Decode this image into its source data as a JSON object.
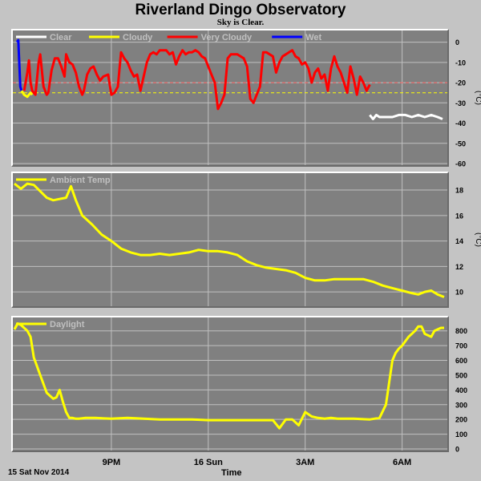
{
  "title": "Riverland Dingo Observatory",
  "subtitle": "Sky is Clear.",
  "footer": {
    "date": "15 Sat Nov 2014",
    "x_label": "Time"
  },
  "x_axis": {
    "tick_labels": [
      {
        "label": "9PM",
        "hour": 3
      },
      {
        "label": "16 Sun",
        "hour": 6
      },
      {
        "label": "3AM",
        "hour": 9
      },
      {
        "label": "6AM",
        "hour": 12
      }
    ],
    "range": [
      0,
      13.35
    ]
  },
  "colors": {
    "panel_bg": "#808080",
    "grid": "#c0c0c0",
    "yellow": "#ffff00",
    "white": "#ffffff",
    "red": "#ff0000",
    "blue": "#0000ff",
    "dash_red": "#ff6060",
    "dash_yellow": "#ffff00"
  },
  "chart_data": [
    {
      "type": "line",
      "id": "sky",
      "ylabel": "(°C)",
      "ylim": [
        -60,
        5
      ],
      "yticks": [
        0,
        -10,
        -20,
        -30,
        -40,
        -50,
        -60
      ],
      "legend": [
        {
          "name": "Clear",
          "color": "#ffffff"
        },
        {
          "name": "Cloudy",
          "color": "#ffff00"
        },
        {
          "name": "Very Cloudy",
          "color": "#ff0000"
        },
        {
          "name": "Wet",
          "color": "#0000ff"
        }
      ],
      "thresholds": [
        -20,
        -25
      ],
      "series": [
        {
          "name": "Wet",
          "color": "#0000ff",
          "x": [
            0.08,
            0.12,
            0.15,
            0.18,
            0.22
          ],
          "y": [
            0,
            1,
            -10,
            -22,
            -24
          ]
        },
        {
          "name": "Cloudy",
          "color": "#ffff00",
          "x": [
            0.22,
            0.3,
            0.4,
            0.5,
            0.55
          ],
          "y": [
            -24,
            -26,
            -27,
            -25,
            -26
          ]
        },
        {
          "name": "Very Cloudy",
          "color": "#ff0000",
          "x": [
            0.3,
            0.4,
            0.45,
            0.5,
            0.55,
            0.65,
            0.75,
            0.8,
            0.9,
            1.0,
            1.05,
            1.15,
            1.25,
            1.35,
            1.45,
            1.55,
            1.6,
            1.7,
            1.8,
            1.9,
            2.0,
            2.1,
            2.15,
            2.25,
            2.35,
            2.45,
            2.55,
            2.65,
            2.75,
            2.9,
            3.0,
            3.1,
            3.2,
            3.3,
            3.4,
            3.5,
            3.6,
            3.7,
            3.8,
            3.9,
            4.0,
            4.1,
            4.2,
            4.3,
            4.4,
            4.5,
            4.6,
            4.7,
            4.8,
            4.9,
            5.0,
            5.1,
            5.2,
            5.3,
            5.4,
            5.5,
            5.6,
            5.7,
            5.8,
            5.9,
            6.0,
            6.1,
            6.2,
            6.3,
            6.4,
            6.5,
            6.6,
            6.7,
            6.8,
            6.9,
            7.0,
            7.1,
            7.2,
            7.3,
            7.4,
            7.5,
            7.6,
            7.7,
            7.8,
            7.9,
            8.0,
            8.1,
            8.2,
            8.3,
            8.4,
            8.5,
            8.6,
            8.7,
            8.8,
            8.9,
            9.0,
            9.1,
            9.2,
            9.3,
            9.4,
            9.5,
            9.6,
            9.7,
            9.8,
            9.9,
            10.0,
            10.1,
            10.2,
            10.3,
            10.4,
            10.5,
            10.6,
            10.7,
            10.8,
            10.9,
            11.0
          ],
          "y": [
            -24,
            -15,
            -9,
            -20,
            -24,
            -26,
            -10,
            -6,
            -22,
            -26,
            -25,
            -14,
            -8,
            -8,
            -12,
            -17,
            -6,
            -10,
            -11,
            -15,
            -22,
            -26,
            -24,
            -16,
            -13,
            -12,
            -16,
            -19,
            -17,
            -16,
            -26,
            -25,
            -22,
            -5,
            -8,
            -10,
            -14,
            -17,
            -16,
            -24,
            -17,
            -10,
            -6,
            -5,
            -6,
            -4,
            -4,
            -4,
            -6,
            -5,
            -11,
            -7,
            -4,
            -6,
            -5,
            -5,
            -4,
            -5,
            -7,
            -8,
            -12,
            -16,
            -20,
            -33,
            -30,
            -26,
            -8,
            -6,
            -6,
            -6,
            -7,
            -8,
            -12,
            -28,
            -30,
            -26,
            -22,
            -5,
            -5,
            -6,
            -7,
            -15,
            -10,
            -7,
            -6,
            -5,
            -4,
            -7,
            -8,
            -11,
            -10,
            -13,
            -20,
            -15,
            -13,
            -18,
            -16,
            -24,
            -13,
            -7,
            -12,
            -15,
            -20,
            -25,
            -12,
            -18,
            -26,
            -17,
            -20,
            -24,
            -21
          ]
        },
        {
          "name": "Clear",
          "color": "#ffffff",
          "x": [
            11.0,
            11.1,
            11.2,
            11.3,
            11.5,
            11.7,
            11.9,
            12.1,
            12.3,
            12.5,
            12.7,
            12.9,
            13.1,
            13.25
          ],
          "y": [
            -36,
            -38,
            -36,
            -37,
            -37,
            -37,
            -36,
            -36,
            -37,
            -36,
            -37,
            -36,
            -37,
            -38
          ]
        }
      ]
    },
    {
      "type": "line",
      "id": "temp",
      "ylabel": "(°C)",
      "ylim": [
        9,
        19.2
      ],
      "yticks": [
        18,
        16,
        14,
        12,
        10
      ],
      "legend": [
        {
          "name": "Ambient Temp",
          "color": "#ffff00"
        }
      ],
      "series": [
        {
          "name": "Ambient Temp",
          "color": "#ffff00",
          "x": [
            0,
            0.2,
            0.4,
            0.6,
            0.8,
            1.0,
            1.2,
            1.4,
            1.6,
            1.75,
            1.9,
            2.1,
            2.4,
            2.7,
            3.0,
            3.3,
            3.6,
            3.9,
            4.2,
            4.5,
            4.8,
            5.1,
            5.4,
            5.7,
            6.0,
            6.3,
            6.6,
            6.9,
            7.2,
            7.5,
            7.8,
            8.1,
            8.4,
            8.7,
            9.0,
            9.3,
            9.6,
            9.9,
            10.2,
            10.5,
            10.8,
            11.1,
            11.4,
            11.7,
            12.0,
            12.3,
            12.5,
            12.7,
            12.9,
            13.1,
            13.3
          ],
          "y": [
            18.5,
            18.1,
            18.5,
            18.4,
            17.9,
            17.4,
            17.2,
            17.3,
            17.4,
            18.3,
            17.2,
            16.0,
            15.3,
            14.5,
            14.0,
            13.4,
            13.1,
            12.9,
            12.9,
            13.0,
            12.9,
            13.0,
            13.1,
            13.3,
            13.2,
            13.2,
            13.1,
            12.9,
            12.4,
            12.1,
            11.9,
            11.8,
            11.7,
            11.5,
            11.1,
            10.9,
            10.9,
            11.0,
            11.0,
            11.0,
            11.0,
            10.8,
            10.5,
            10.3,
            10.1,
            9.9,
            9.8,
            10.0,
            10.1,
            9.8,
            9.6
          ]
        }
      ]
    },
    {
      "type": "line",
      "id": "daylight",
      "ylabel": "",
      "ylim": [
        0,
        880
      ],
      "yticks": [
        800,
        700,
        600,
        500,
        400,
        300,
        200,
        100,
        0
      ],
      "legend": [
        {
          "name": "Daylight",
          "color": "#ffff00"
        }
      ],
      "series": [
        {
          "name": "Daylight",
          "color": "#ffff00",
          "x": [
            0,
            0.1,
            0.2,
            0.3,
            0.4,
            0.5,
            0.6,
            0.8,
            1.0,
            1.2,
            1.3,
            1.4,
            1.5,
            1.6,
            1.7,
            1.8,
            1.9,
            2.0,
            2.2,
            2.5,
            3.0,
            3.5,
            4.0,
            4.5,
            5.0,
            5.5,
            6.0,
            6.5,
            7.0,
            7.5,
            8.0,
            8.2,
            8.4,
            8.6,
            8.8,
            9.0,
            9.2,
            9.4,
            9.6,
            9.8,
            10.0,
            10.5,
            11.0,
            11.3,
            11.5,
            11.7,
            11.8,
            11.9,
            12.0,
            12.2,
            12.4,
            12.5,
            12.6,
            12.7,
            12.8,
            12.9,
            13.0,
            13.1,
            13.2,
            13.3
          ],
          "y": [
            810,
            850,
            840,
            820,
            800,
            760,
            620,
            500,
            380,
            340,
            350,
            400,
            320,
            250,
            210,
            210,
            205,
            205,
            210,
            210,
            205,
            210,
            205,
            200,
            200,
            200,
            195,
            195,
            195,
            195,
            195,
            140,
            200,
            200,
            160,
            250,
            220,
            210,
            205,
            210,
            205,
            205,
            200,
            210,
            300,
            600,
            650,
            680,
            700,
            760,
            800,
            830,
            830,
            780,
            770,
            760,
            800,
            810,
            820,
            820
          ]
        }
      ]
    }
  ]
}
